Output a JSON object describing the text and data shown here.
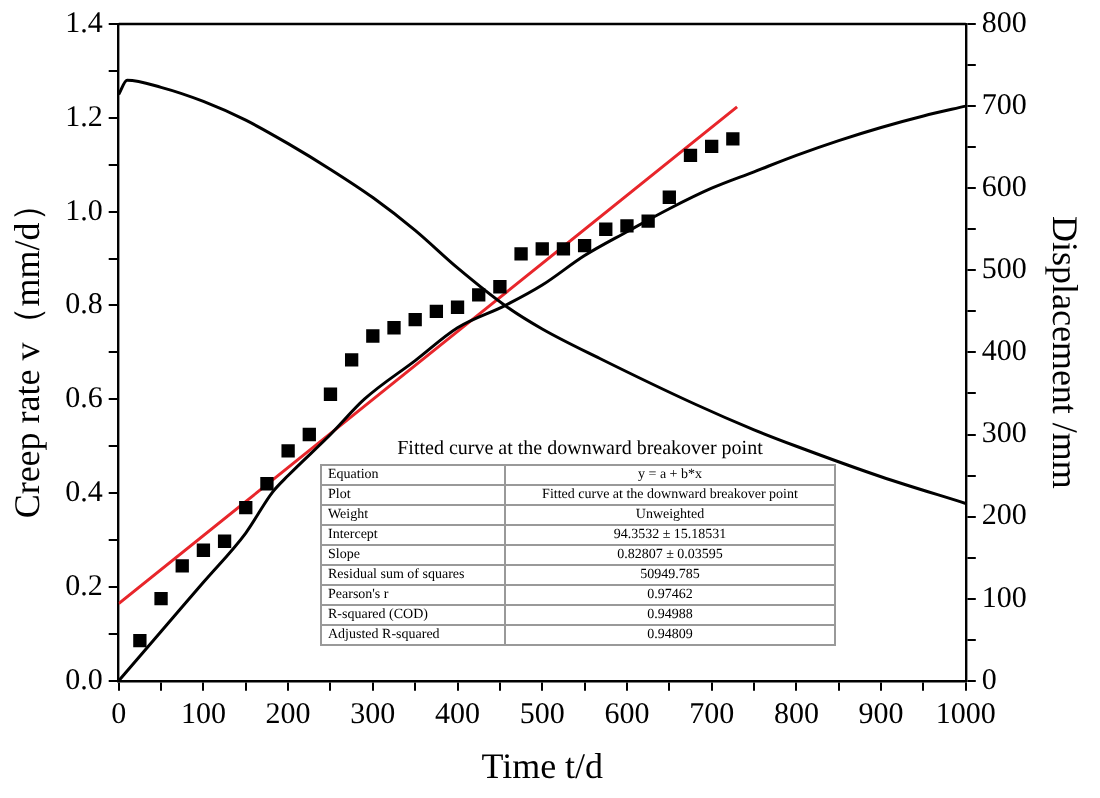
{
  "chart_data": {
    "type": "line",
    "xlabel": "Time t/d",
    "ylabel": "Creep rate v（mm/d）",
    "y2label": "Displacement /mm",
    "xlim": [
      0,
      1000
    ],
    "xticks": [
      0,
      {
        "value": 50,
        "label": null
      },
      100,
      {
        "value": 150,
        "label": null
      },
      200,
      {
        "value": 250,
        "label": null
      },
      300,
      {
        "value": 350,
        "label": null
      },
      400,
      {
        "value": 450,
        "label": null
      },
      500,
      {
        "value": 550,
        "label": null
      },
      600,
      {
        "value": 650,
        "label": null
      },
      700,
      {
        "value": 750,
        "label": null
      },
      800,
      {
        "value": 850,
        "label": null
      },
      900,
      {
        "value": 950,
        "label": null
      },
      1000
    ],
    "ylim": [
      0,
      1.4
    ],
    "yticks": [
      {
        "value": 0,
        "label": "0.0"
      },
      {
        "value": 0.1,
        "label": null
      },
      0.2,
      {
        "value": 0.3,
        "label": null
      },
      0.4,
      {
        "value": 0.5,
        "label": null
      },
      0.6,
      {
        "value": 0.7,
        "label": null
      },
      0.8,
      {
        "value": 0.9,
        "label": null
      },
      {
        "value": 1,
        "label": "1.0"
      },
      {
        "value": 1.1,
        "label": null
      },
      1.2,
      {
        "value": 1.3,
        "label": null
      },
      1.4
    ],
    "y2lim": [
      0,
      800
    ],
    "y2ticks": [
      0,
      {
        "value": 50,
        "label": null
      },
      100,
      {
        "value": 150,
        "label": null
      },
      200,
      {
        "value": 250,
        "label": null
      },
      300,
      {
        "value": 350,
        "label": null
      },
      400,
      {
        "value": 450,
        "label": null
      },
      500,
      {
        "value": 550,
        "label": null
      },
      600,
      {
        "value": 650,
        "label": null
      },
      700,
      {
        "value": 750,
        "label": null
      },
      800
    ],
    "grid": false,
    "legend": false,
    "series": [
      {
        "color": "#000000",
        "marker": "none",
        "x": [
          0,
          10,
          50,
          100,
          150,
          200,
          250,
          300,
          350,
          400,
          456,
          500,
          568,
          680,
          750,
          800,
          900,
          1000
        ],
        "values": [
          1.25,
          1.28,
          1.265,
          1.235,
          1.195,
          1.145,
          1.09,
          1.03,
          0.96,
          0.88,
          0.8,
          0.75,
          0.687,
          0.59,
          0.535,
          0.5,
          0.435,
          0.378
        ]
      },
      {
        "color": "#000000",
        "marker": "none",
        "axis": "y2",
        "x": [
          0,
          50,
          100,
          150,
          181,
          200,
          250,
          290,
          350,
          400,
          456,
          500,
          550,
          600,
          650,
          700,
          750,
          800,
          850,
          900,
          950,
          1000
        ],
        "values": [
          0,
          60,
          120,
          180,
          229,
          250,
          300,
          343,
          390,
          430,
          457,
          482,
          518,
          547,
          575,
          600,
          620,
          640,
          658,
          674,
          688,
          700
        ]
      },
      {
        "type": "scatter",
        "color": "#000000",
        "marker": "square",
        "axis": "y2",
        "x": [
          25,
          50,
          75,
          100,
          125,
          150,
          175,
          200,
          225,
          250,
          275,
          300,
          325,
          350,
          375,
          400,
          425,
          450,
          475,
          500,
          525,
          550,
          575,
          600,
          625,
          650,
          675,
          700,
          725
        ],
        "values": [
          49,
          100,
          140,
          159,
          170,
          211,
          240,
          280,
          300,
          349,
          391,
          420,
          430,
          440,
          450,
          455,
          470,
          480,
          520,
          526,
          526,
          530,
          550,
          554,
          560,
          589,
          640,
          651,
          660
        ]
      },
      {
        "color": "#e8262b",
        "marker": "none",
        "axis": "y2",
        "x": [
          0,
          730
        ],
        "values": [
          94,
          699
        ]
      }
    ],
    "annotations": [
      "Fitted curve at the downward breakover point",
      "Equation",
      "y = a + b*x",
      "Plot",
      "Fitted curve at the downward breakover point",
      "Weight",
      "Unweighted",
      "Intercept",
      "94.3532 ± 15.18531",
      "Slope",
      "0.82807 ± 0.03595",
      "Residual sum of squares",
      "50949.785",
      "Pearson's r",
      "0.97462",
      "R-squared (COD)",
      "0.94988",
      "Adjusted R-squared",
      "0.94809"
    ]
  }
}
